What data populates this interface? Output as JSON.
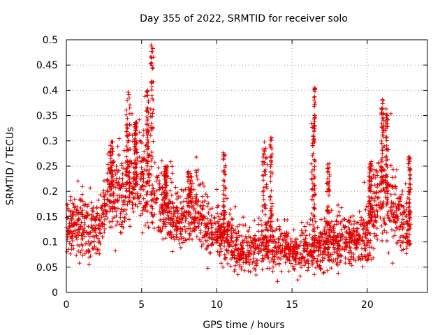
{
  "chart_data": {
    "type": "scatter",
    "title": "Day 355 of 2022, SRMTID for receiver solo",
    "xlabel": "GPS time / hours",
    "ylabel": "SRMTID / TECUs",
    "xlim": [
      0,
      24
    ],
    "ylim": [
      0,
      0.5
    ],
    "xticks": [
      0,
      5,
      10,
      15,
      20
    ],
    "xtick_labels": [
      "0",
      "5",
      "10",
      "15",
      "20"
    ],
    "yticks": [
      0,
      0.05,
      0.1,
      0.15,
      0.2,
      0.25,
      0.3,
      0.35,
      0.4,
      0.45,
      0.5
    ],
    "ytick_labels": [
      "0",
      "0.05",
      "0.1",
      "0.15",
      "0.2",
      "0.25",
      "0.3",
      "0.35",
      "0.4",
      "0.45",
      "0.5"
    ],
    "grid": true,
    "marker": "+",
    "color": "#e00000",
    "x_extent": [
      0,
      22.9
    ],
    "baseline_profile": {
      "x": [
        0,
        1,
        2,
        2.6,
        3,
        4,
        4.5,
        5,
        5.5,
        6,
        6.6,
        7.5,
        8,
        8.7,
        9.5,
        10.5,
        11.5,
        12.5,
        13.3,
        14,
        15,
        16,
        17,
        18,
        19,
        19.8,
        20.5,
        21,
        21.5,
        22.9
      ],
      "median": [
        0.13,
        0.13,
        0.12,
        0.17,
        0.19,
        0.2,
        0.21,
        0.22,
        0.21,
        0.19,
        0.17,
        0.13,
        0.15,
        0.17,
        0.12,
        0.11,
        0.08,
        0.085,
        0.095,
        0.09,
        0.085,
        0.085,
        0.09,
        0.1,
        0.1,
        0.1,
        0.16,
        0.2,
        0.17,
        0.12
      ],
      "spread": [
        0.03,
        0.035,
        0.035,
        0.04,
        0.05,
        0.05,
        0.05,
        0.05,
        0.05,
        0.045,
        0.04,
        0.03,
        0.035,
        0.035,
        0.03,
        0.03,
        0.025,
        0.025,
        0.03,
        0.028,
        0.025,
        0.03,
        0.03,
        0.03,
        0.03,
        0.03,
        0.05,
        0.06,
        0.05,
        0.035
      ]
    },
    "peak_clusters": [
      {
        "x": 4.1,
        "peak": 0.4,
        "width": 0.25
      },
      {
        "x": 4.6,
        "peak": 0.34,
        "width": 0.15
      },
      {
        "x": 5.7,
        "peak": 0.49,
        "width": 0.2
      },
      {
        "x": 5.4,
        "peak": 0.4,
        "width": 0.15
      },
      {
        "x": 3.0,
        "peak": 0.3,
        "width": 0.25
      },
      {
        "x": 6.6,
        "peak": 0.25,
        "width": 0.2
      },
      {
        "x": 8.2,
        "peak": 0.24,
        "width": 0.3
      },
      {
        "x": 10.5,
        "peak": 0.28,
        "width": 0.15
      },
      {
        "x": 13.2,
        "peak": 0.3,
        "width": 0.3
      },
      {
        "x": 13.6,
        "peak": 0.31,
        "width": 0.15
      },
      {
        "x": 16.4,
        "peak": 0.35,
        "width": 0.25
      },
      {
        "x": 16.5,
        "peak": 0.405,
        "width": 0.08
      },
      {
        "x": 17.4,
        "peak": 0.26,
        "width": 0.2
      },
      {
        "x": 20.2,
        "peak": 0.26,
        "width": 0.2
      },
      {
        "x": 21.0,
        "peak": 0.385,
        "width": 0.2
      },
      {
        "x": 21.3,
        "peak": 0.37,
        "width": 0.15
      },
      {
        "x": 22.8,
        "peak": 0.27,
        "width": 0.15
      }
    ],
    "point_count": 2600
  }
}
